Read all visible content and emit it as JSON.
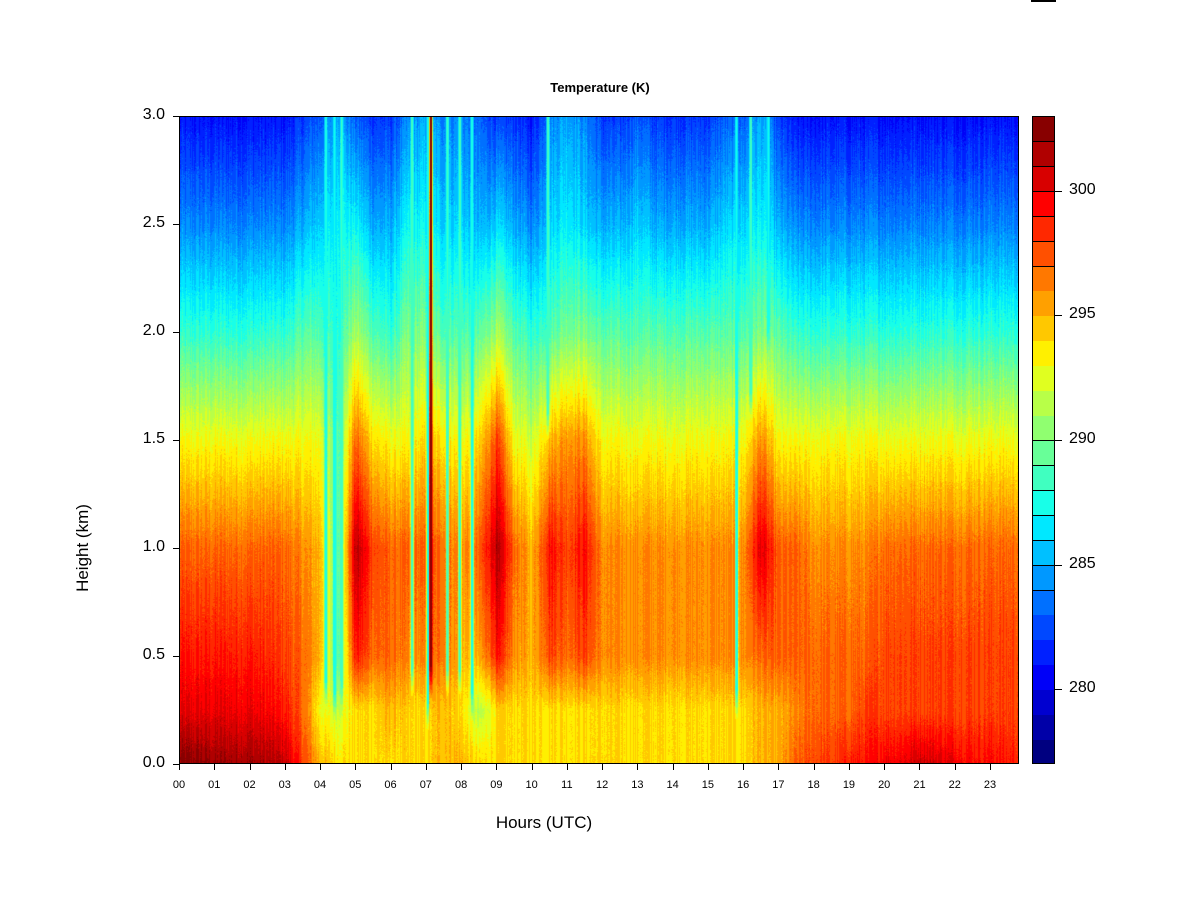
{
  "chart_data": {
    "type": "heatmap",
    "title": "Temperature (K)",
    "xlabel": "Hours (UTC)",
    "ylabel": "Height (km)",
    "xlim": [
      0,
      23.82
    ],
    "ylim": [
      0,
      3.0
    ],
    "x_tick_labels": [
      "00",
      "01",
      "02",
      "03",
      "04",
      "05",
      "06",
      "07",
      "08",
      "09",
      "10",
      "11",
      "12",
      "13",
      "14",
      "15",
      "16",
      "17",
      "18",
      "19",
      "20",
      "21",
      "22",
      "23"
    ],
    "y_tick_labels": [
      "0.0",
      "0.5",
      "1.0",
      "1.5",
      "2.0",
      "2.5",
      "3.0"
    ],
    "colorbar": {
      "levels": [
        277,
        303
      ],
      "step": 1,
      "tick_labels": [
        "280",
        "285",
        "290",
        "295",
        "300"
      ],
      "colors": [
        "#000080",
        "#0000a8",
        "#0000d0",
        "#0000f8",
        "#0020ff",
        "#0048ff",
        "#0070ff",
        "#0098ff",
        "#00c0ff",
        "#00e8ff",
        "#18ffe8",
        "#40ffc0",
        "#68ff98",
        "#90ff70",
        "#b8ff48",
        "#e0ff20",
        "#fff000",
        "#ffc800",
        "#ffa000",
        "#ff7800",
        "#ff5000",
        "#ff2800",
        "#ff0000",
        "#d80000",
        "#b00000",
        "#880000"
      ]
    },
    "heights_km": [
      0,
      0.25,
      0.5,
      1.0,
      1.5,
      2.0,
      2.5,
      3.0
    ],
    "hours": [
      0,
      0.5,
      1,
      1.5,
      2,
      2.5,
      3,
      3.5,
      4,
      4.5,
      5,
      5.5,
      6,
      6.5,
      7,
      7.5,
      8,
      8.5,
      9,
      9.5,
      10,
      10.5,
      11,
      11.5,
      12,
      12.5,
      13,
      13.5,
      14,
      14.5,
      15,
      15.5,
      16,
      16.5,
      17,
      17.5,
      18,
      18.5,
      19,
      19.5,
      20,
      20.5,
      21,
      21.5,
      22,
      22.5,
      23,
      23.5
    ],
    "temperature_profiles_K": [
      [
        302.5,
        300,
        299,
        297,
        293,
        288,
        284,
        281
      ],
      [
        302.5,
        300,
        299,
        297,
        293,
        288,
        284,
        281
      ],
      [
        302,
        300,
        299,
        297,
        293,
        288,
        284,
        281
      ],
      [
        302,
        300,
        299,
        297,
        293,
        288,
        284,
        281
      ],
      [
        302,
        300,
        299,
        297,
        293,
        288,
        284,
        281
      ],
      [
        301.5,
        299.5,
        298.5,
        297,
        293,
        288,
        284,
        281
      ],
      [
        301,
        299,
        298,
        297,
        293,
        288,
        284,
        281
      ],
      [
        298,
        297,
        297,
        296,
        293,
        289,
        285,
        282
      ],
      [
        295,
        293,
        295,
        295,
        293,
        289,
        286,
        283
      ],
      [
        294,
        292,
        289,
        289,
        289,
        288,
        287,
        285
      ],
      [
        294,
        294,
        299,
        301.5,
        297,
        291,
        287,
        283
      ],
      [
        294,
        294,
        297,
        298,
        294,
        289,
        285,
        282
      ],
      [
        294,
        295,
        297,
        297,
        293,
        288,
        285,
        282
      ],
      [
        294,
        294,
        296,
        297,
        293,
        290,
        287,
        284
      ],
      [
        294,
        294,
        296,
        297,
        294,
        290,
        287,
        285
      ],
      [
        295,
        295,
        297,
        297,
        294,
        289,
        286,
        284
      ],
      [
        295,
        294,
        295,
        296,
        293,
        289,
        286,
        284
      ],
      [
        294,
        291,
        295,
        297,
        294,
        289,
        285,
        283
      ],
      [
        294,
        294,
        299,
        301.5,
        298,
        291,
        286,
        282
      ],
      [
        294,
        294,
        296,
        297,
        293,
        289,
        285,
        282
      ],
      [
        294,
        294,
        295,
        295,
        292,
        288,
        284,
        281
      ],
      [
        294,
        294,
        298,
        299.5,
        295,
        289,
        286,
        284
      ],
      [
        294,
        294,
        297,
        298,
        296,
        290,
        287,
        285
      ],
      [
        294,
        294,
        298,
        299.5,
        296,
        290,
        286,
        284
      ],
      [
        294,
        294,
        296,
        296,
        293,
        289,
        285,
        282
      ],
      [
        294,
        294,
        296,
        296,
        293,
        289,
        285,
        282
      ],
      [
        294,
        294,
        296,
        296,
        293,
        289,
        286,
        283
      ],
      [
        294,
        294,
        296,
        296,
        293,
        289,
        285,
        282
      ],
      [
        294,
        294,
        296,
        296,
        293,
        289,
        285,
        282
      ],
      [
        294,
        294,
        296,
        296,
        293,
        289,
        285,
        282
      ],
      [
        294,
        294,
        296,
        296,
        293,
        289,
        285,
        282
      ],
      [
        294,
        294,
        296,
        296,
        293,
        289,
        286,
        283
      ],
      [
        294,
        294,
        296,
        296,
        293,
        289,
        286,
        283
      ],
      [
        295,
        295,
        297,
        300.5,
        296,
        290,
        287,
        285
      ],
      [
        295,
        295,
        297,
        297,
        293,
        289,
        285,
        282
      ],
      [
        297,
        296,
        297,
        297,
        293,
        288,
        284,
        281
      ],
      [
        298,
        297,
        297,
        296,
        293,
        288,
        284,
        281
      ],
      [
        298,
        297,
        297,
        296,
        293,
        288,
        284,
        281
      ],
      [
        299,
        297,
        297,
        296,
        293,
        288,
        284,
        281
      ],
      [
        299,
        298,
        297,
        296,
        293,
        288,
        284,
        281
      ],
      [
        300,
        298,
        298,
        297,
        293,
        288,
        284,
        281
      ],
      [
        300,
        298,
        298,
        297,
        293,
        288,
        284,
        281
      ],
      [
        301,
        298,
        298,
        297,
        293,
        288,
        284,
        281
      ],
      [
        300.5,
        298,
        298,
        297,
        293,
        288,
        284,
        281
      ],
      [
        300,
        298,
        298,
        297,
        293,
        288,
        284,
        281
      ],
      [
        299.5,
        298,
        298,
        297,
        293,
        288,
        284,
        281
      ],
      [
        299.5,
        298,
        298,
        297,
        293,
        288,
        284,
        281
      ],
      [
        299,
        298,
        298,
        297,
        293,
        288,
        284,
        281
      ]
    ],
    "narrow_features": [
      {
        "hour": 4.15,
        "temp_K": 287,
        "above_km": 0.25
      },
      {
        "hour": 4.4,
        "temp_K": 287,
        "above_km": 0.2
      },
      {
        "hour": 4.6,
        "temp_K": 288,
        "above_km": 0.25
      },
      {
        "hour": 6.6,
        "temp_K": 288,
        "above_km": 0.3
      },
      {
        "hour": 7.05,
        "temp_K": 287,
        "above_km": 0.15
      },
      {
        "hour": 7.13,
        "temp_K": 302,
        "above_km": 0.3
      },
      {
        "hour": 7.6,
        "temp_K": 288,
        "above_km": 0.3
      },
      {
        "hour": 7.95,
        "temp_K": 288,
        "above_km": 0.3
      },
      {
        "hour": 8.3,
        "temp_K": 287,
        "above_km": 0.2
      },
      {
        "hour": 10.45,
        "temp_K": 288,
        "above_km": 1.5
      },
      {
        "hour": 15.8,
        "temp_K": 287,
        "above_km": 0.2
      },
      {
        "hour": 16.2,
        "temp_K": 288,
        "above_km": 1.6
      },
      {
        "hour": 16.7,
        "temp_K": 287,
        "above_km": 1.9
      }
    ]
  }
}
